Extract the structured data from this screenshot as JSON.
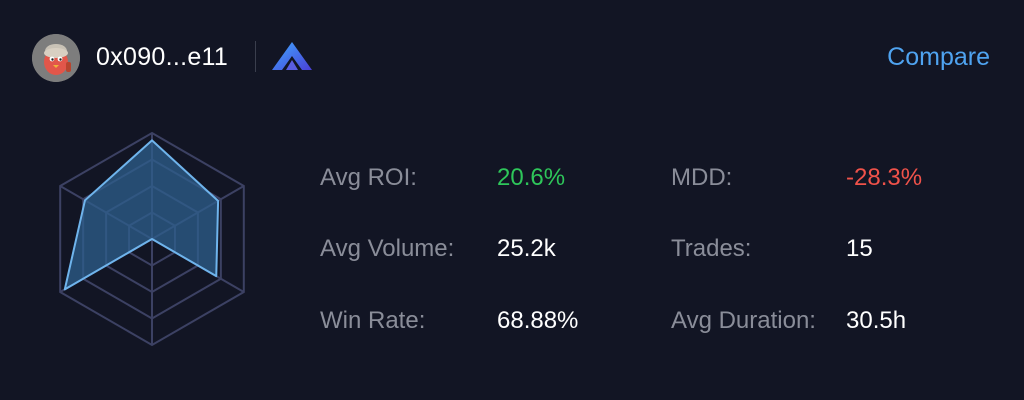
{
  "header": {
    "address": "0x090...e11",
    "compare_label": "Compare",
    "avatar_icon": "red-bird-avatar-icon",
    "platform_icon": "blue-triangle-logo-icon"
  },
  "radar": {
    "axes": 6,
    "rings": 4,
    "values": [
      0.93,
      0.72,
      0.7,
      0.0,
      0.95,
      0.73
    ],
    "fill_color": "#2e5f8c",
    "stroke_color": "#6fb4ec",
    "grid_color": "#3c4163"
  },
  "stats": {
    "avg_roi": {
      "label": "Avg ROI:",
      "value": "20.6%",
      "color": "#2ec65a"
    },
    "mdd": {
      "label": "MDD:",
      "value": "-28.3%",
      "color": "#f0524a"
    },
    "avg_volume": {
      "label": "Avg Volume:",
      "value": "25.2k"
    },
    "trades": {
      "label": "Trades:",
      "value": "15"
    },
    "win_rate": {
      "label": "Win Rate:",
      "value": "68.88%"
    },
    "avg_duration": {
      "label": "Avg Duration:",
      "value": "30.5h"
    }
  }
}
